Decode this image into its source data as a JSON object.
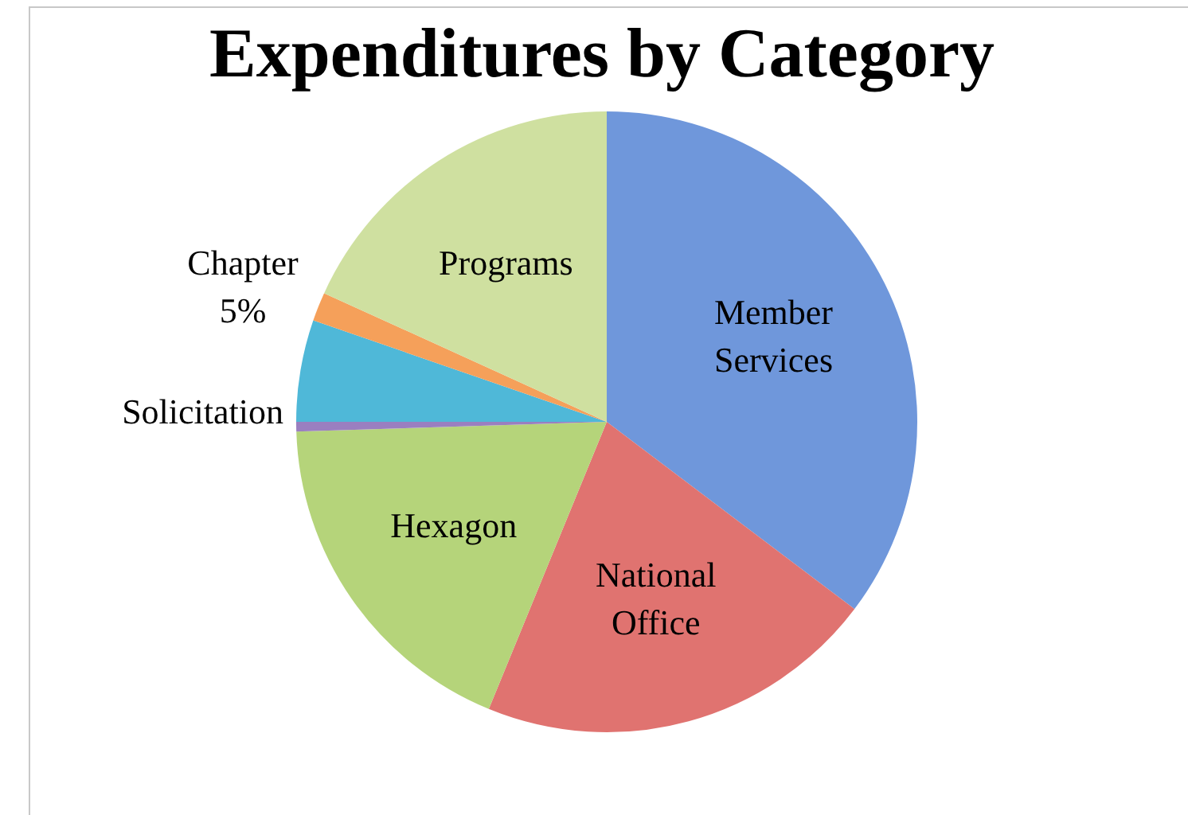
{
  "chart_data": {
    "type": "pie",
    "title": "Expenditures by Category",
    "categories": [
      "Member Services",
      "National Office",
      "Hexagon",
      "Solicitation",
      null,
      "Chapter 5%",
      "Programs"
    ],
    "values": [
      35.3,
      20.9,
      18.3,
      0.5,
      5.3,
      1.5,
      18.2
    ],
    "colors": [
      "#6f97db",
      "#e07370",
      "#b5d47a",
      "#9a7fc0",
      "#4fb8d8",
      "#f5a05a",
      "#cfe0a0"
    ],
    "legend": false
  }
}
